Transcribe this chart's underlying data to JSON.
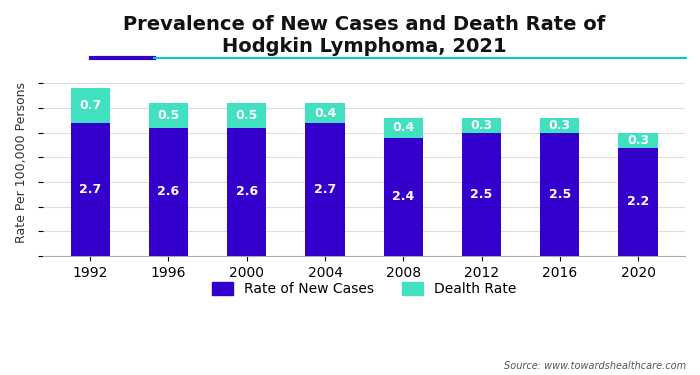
{
  "title": "Prevalence of New Cases and Death Rate of\nHodgkin Lymphoma, 2021",
  "ylabel": "Rate Per 100,000 Persons",
  "source": "Source: www.towardshealthcare.com",
  "categories": [
    "1992",
    "1996",
    "2000",
    "2004",
    "2008",
    "2012",
    "2016",
    "2020"
  ],
  "new_cases": [
    2.7,
    2.6,
    2.6,
    2.7,
    2.4,
    2.5,
    2.5,
    2.2
  ],
  "death_rate": [
    0.7,
    0.5,
    0.5,
    0.4,
    0.4,
    0.3,
    0.3,
    0.3
  ],
  "bar_color_cases": "#3300CC",
  "bar_color_death": "#40E0C0",
  "background_color": "#FFFFFF",
  "legend_cases": "Rate of New Cases",
  "legend_death": "Dealth Rate",
  "title_fontsize": 14,
  "label_fontsize": 9,
  "tick_fontsize": 10,
  "bar_width": 0.5,
  "ylim": [
    0,
    3.8
  ],
  "accent_line_color": "#00CCC0",
  "accent_bar_color": "#3300CC",
  "grid_color": "#DDDDDD"
}
